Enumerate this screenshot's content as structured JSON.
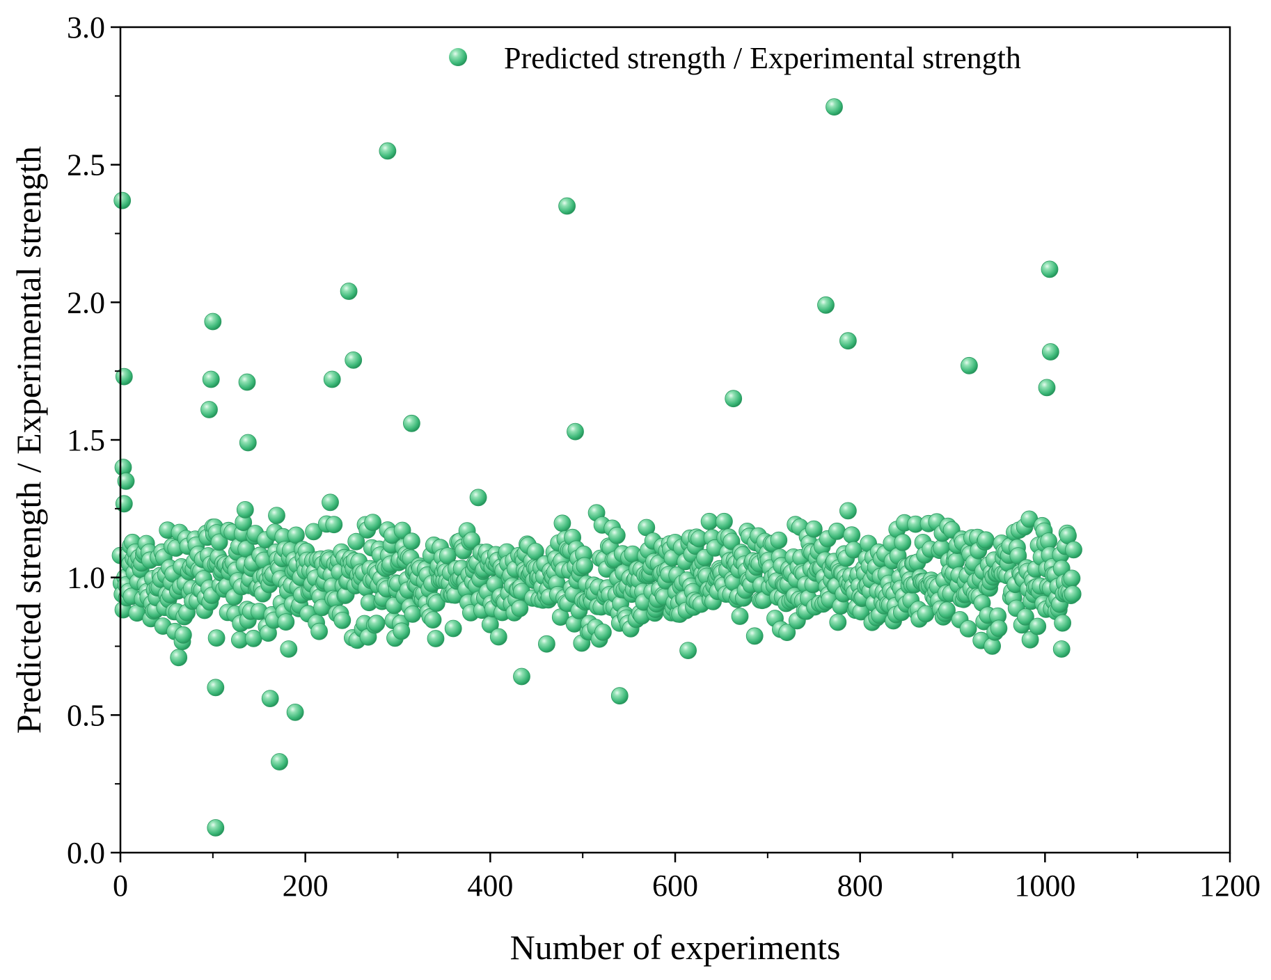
{
  "chart_data": {
    "type": "scatter",
    "title": "",
    "xlabel": "Number of experiments",
    "ylabel": "Predicted strength / Experimental strength",
    "xlim": [
      0,
      1200
    ],
    "ylim": [
      0.0,
      3.0
    ],
    "xticks": [
      0,
      200,
      400,
      600,
      800,
      1000,
      1200
    ],
    "yticks": [
      0.0,
      0.5,
      1.0,
      1.5,
      2.0,
      2.5,
      3.0
    ],
    "xtick_labels": [
      "0",
      "200",
      "400",
      "600",
      "800",
      "1000",
      "1200"
    ],
    "ytick_labels": [
      "0.0",
      "0.5",
      "1.0",
      "1.5",
      "2.0",
      "2.5",
      "3.0"
    ],
    "legend_position": "top-right",
    "series": [
      {
        "name": "Predicted strength / Experimental strength",
        "color": "#3cb878",
        "n_points": 1032,
        "noted_points": [
          {
            "x": 2,
            "y": 2.37
          },
          {
            "x": 4,
            "y": 1.73
          },
          {
            "x": 3,
            "y": 1.4
          },
          {
            "x": 6,
            "y": 1.35
          },
          {
            "x": 100,
            "y": 1.93
          },
          {
            "x": 98,
            "y": 1.72
          },
          {
            "x": 96,
            "y": 1.61
          },
          {
            "x": 104,
            "y": 0.78
          },
          {
            "x": 103,
            "y": 0.6
          },
          {
            "x": 103,
            "y": 0.09
          },
          {
            "x": 137,
            "y": 1.71
          },
          {
            "x": 138,
            "y": 1.49
          },
          {
            "x": 162,
            "y": 0.56
          },
          {
            "x": 172,
            "y": 0.33
          },
          {
            "x": 189,
            "y": 0.51
          },
          {
            "x": 229,
            "y": 1.72
          },
          {
            "x": 247,
            "y": 2.04
          },
          {
            "x": 252,
            "y": 1.79
          },
          {
            "x": 289,
            "y": 2.55
          },
          {
            "x": 315,
            "y": 1.56
          },
          {
            "x": 434,
            "y": 0.64
          },
          {
            "x": 483,
            "y": 2.35
          },
          {
            "x": 492,
            "y": 1.53
          },
          {
            "x": 540,
            "y": 0.57
          },
          {
            "x": 663,
            "y": 1.65
          },
          {
            "x": 763,
            "y": 1.99
          },
          {
            "x": 772,
            "y": 2.71
          },
          {
            "x": 787,
            "y": 1.86
          },
          {
            "x": 918,
            "y": 1.77
          },
          {
            "x": 1005,
            "y": 2.12
          },
          {
            "x": 1006,
            "y": 1.82
          },
          {
            "x": 1002,
            "y": 1.69
          },
          {
            "x": 1018,
            "y": 0.74
          }
        ]
      }
    ]
  }
}
